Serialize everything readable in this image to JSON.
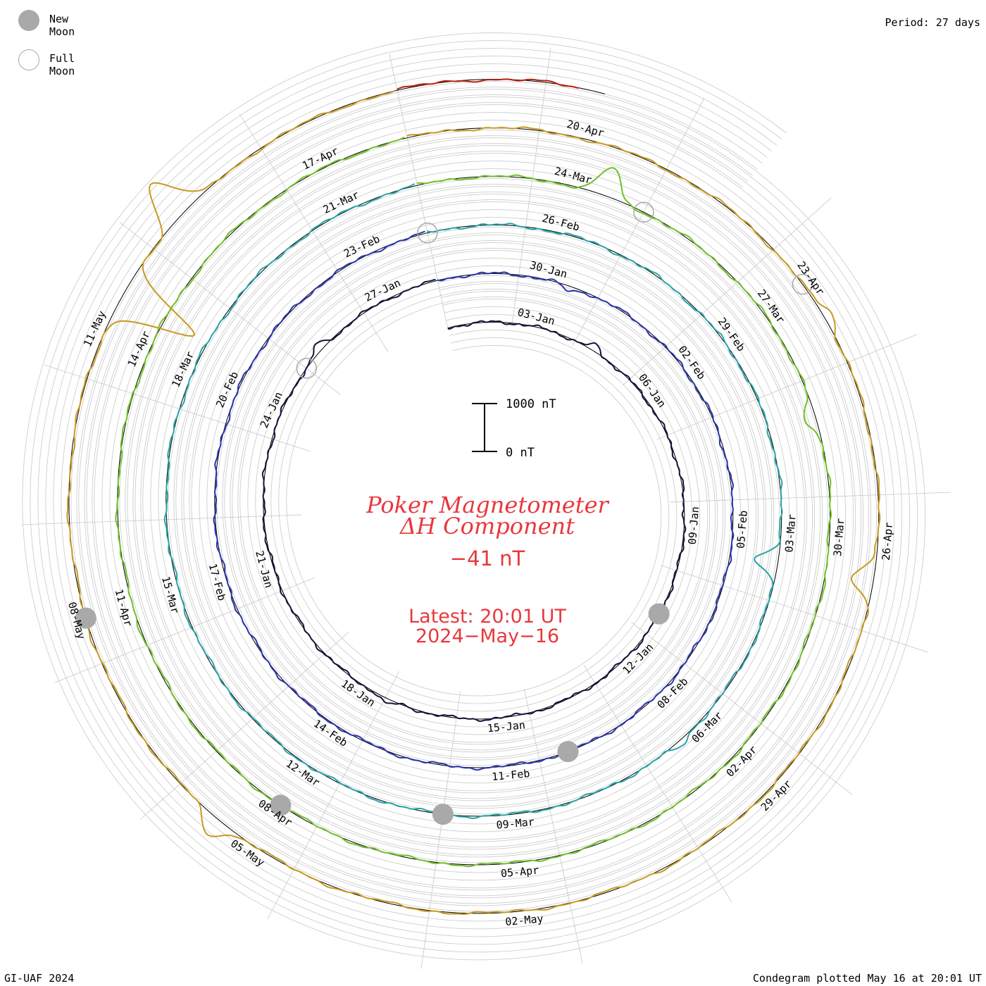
{
  "header": {
    "period": "Period: 27 days"
  },
  "legend": {
    "new_moon": "New Moon",
    "full_moon": "Full Moon"
  },
  "center": {
    "title_line1": "Poker Magnetometer",
    "title_line2": "ΔH Component",
    "current_value": "−41 nT",
    "latest_line1": "Latest: 20:01 UT",
    "latest_line2": "2024−May−16",
    "scale_top": "1000 nT",
    "scale_bottom": "0 nT"
  },
  "footer": {
    "left": "GI-UAF 2024",
    "right": "Condegram plotted May 16 at 20:01 UT"
  },
  "colors": {
    "title": "#e8383d",
    "grid": "#c8c8c8",
    "moon": "#a9a9a9"
  },
  "chart_data": {
    "type": "line",
    "projection": "spiral (condegram), clockwise, 27-day period per revolution",
    "period_days": 27,
    "start_date": "2024-01-01",
    "end_date": "2024-05-16",
    "units": "nT",
    "baseline_nT": 0,
    "scale_bar_nT": [
      0,
      1000
    ],
    "current_value_nT": -41,
    "date_ticks": [
      "03-Jan",
      "06-Jan",
      "09-Jan",
      "12-Jan",
      "15-Jan",
      "18-Jan",
      "21-Jan",
      "24-Jan",
      "27-Jan",
      "30-Jan",
      "02-Feb",
      "05-Feb",
      "08-Feb",
      "11-Feb",
      "14-Feb",
      "17-Feb",
      "20-Feb",
      "23-Feb",
      "26-Feb",
      "29-Feb",
      "03-Mar",
      "06-Mar",
      "09-Mar",
      "12-Mar",
      "15-Mar",
      "18-Mar",
      "21-Mar",
      "24-Mar",
      "27-Mar",
      "30-Mar",
      "02-Apr",
      "05-Apr",
      "08-Apr",
      "11-Apr",
      "14-Apr",
      "17-Apr",
      "20-Apr",
      "23-Apr",
      "26-Apr",
      "29-Apr",
      "02-May",
      "05-May",
      "08-May",
      "11-May"
    ],
    "revolutions": [
      {
        "start": "01-Jan",
        "color": "#1c0f3c"
      },
      {
        "start": "28-Jan",
        "color": "#2a34a8"
      },
      {
        "start": "24-Feb",
        "color": "#2aa3a8"
      },
      {
        "start": "22-Mar",
        "color": "#72bf2a"
      },
      {
        "start": "18-Apr",
        "color": "#c79a20"
      },
      {
        "start": "15-May",
        "color": "#b5200e"
      }
    ],
    "full_moons": [
      "25-Jan",
      "24-Feb",
      "25-Mar",
      "23-Apr"
    ],
    "new_moons": [
      "11-Jan",
      "10-Feb",
      "10-Mar",
      "08-Apr",
      "08-May"
    ],
    "events": [
      {
        "date": "04-Jan",
        "nT": -120
      },
      {
        "date": "17-Jan",
        "nT": -110
      },
      {
        "date": "25-Jan",
        "nT": -150
      },
      {
        "date": "30-Jan",
        "nT": 110
      },
      {
        "date": "03-Mar",
        "nT": 500
      },
      {
        "date": "06-Mar",
        "nT": -130
      },
      {
        "date": "24-Mar",
        "nT": -600
      },
      {
        "date": "28-Mar",
        "nT": 250
      },
      {
        "date": "23-Apr",
        "nT": -180
      },
      {
        "date": "26-Apr",
        "nT": 450
      },
      {
        "date": "05-May",
        "nT": -350
      },
      {
        "date": "11-May",
        "nT": 1750
      },
      {
        "date": "12-May",
        "nT": -900
      }
    ]
  }
}
